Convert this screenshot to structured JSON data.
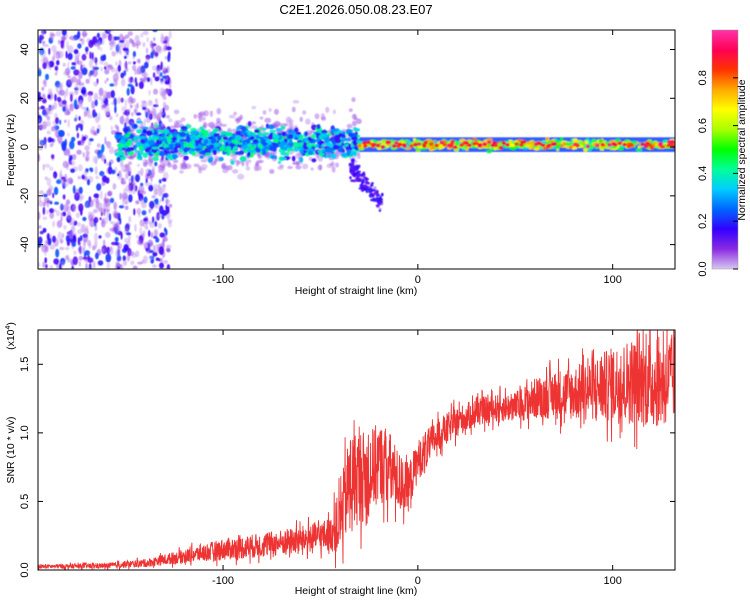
{
  "title": "C2E1.2026.050.08.23.E07",
  "chart_data": [
    {
      "type": "heatmap",
      "title": "C2E1.2026.050.08.23.E07",
      "xlabel": "Height of straight line (km)",
      "ylabel": "Frequency (Hz)",
      "xlim": [
        -195,
        132
      ],
      "ylim": [
        -50,
        48
      ],
      "xticks": [
        -100,
        0,
        100
      ],
      "xtick_labels": [
        "-100",
        "0",
        "100"
      ],
      "yticks": [
        -40,
        -20,
        0,
        20,
        40
      ],
      "ytick_labels": [
        "-40",
        "-20",
        "0",
        "20",
        "40"
      ],
      "grid": false,
      "colorbar": {
        "label": "Normalized spectral amplitude",
        "range": [
          0,
          1
        ],
        "ticks": [
          0.0,
          0.2,
          0.4,
          0.6,
          0.8
        ],
        "tick_labels": [
          "0.0",
          "0.2",
          "0.4",
          "0.6",
          "0.8"
        ],
        "colormap": [
          "#d8c8f0",
          "#8a2be2",
          "#3300ff",
          "#0066ff",
          "#00ccff",
          "#00ff99",
          "#00ff00",
          "#aaff00",
          "#ffff00",
          "#ffaa00",
          "#ff3300",
          "#ff0055",
          "#ff33aa"
        ]
      },
      "description_regions": [
        {
          "name": "diffuse-noise",
          "x_range": [
            -195,
            -135
          ],
          "freq_range": [
            -50,
            48
          ],
          "amplitude": [
            0.02,
            0.25
          ]
        },
        {
          "name": "scattered-band",
          "x_range": [
            -155,
            -30
          ],
          "center_freq": 2,
          "half_width_hz": 5,
          "amplitude": [
            0.15,
            0.45
          ]
        },
        {
          "name": "descending-branch",
          "x_range": [
            -35,
            -18
          ],
          "freq_range": [
            -25,
            -8
          ],
          "amplitude": [
            0.1,
            0.2
          ]
        },
        {
          "name": "steady-line",
          "x_range": [
            -30,
            132
          ],
          "center_freq": 1,
          "half_width_hz": 3,
          "amplitude": [
            0.4,
            0.95
          ]
        }
      ]
    },
    {
      "type": "line",
      "xlabel": "Height of straight line (km)",
      "ylabel": "SNR (10 * v/v)",
      "y_multiplier_label": "(x10",
      "y_multiplier_exp": "4",
      "y_multiplier_close": ")",
      "xlim": [
        -195,
        132
      ],
      "ylim": [
        0,
        17500
      ],
      "xticks": [
        -100,
        0,
        100
      ],
      "xtick_labels": [
        "-100",
        "0",
        "100"
      ],
      "yticks": [
        0,
        5000,
        10000,
        15000
      ],
      "ytick_labels": [
        "0.0",
        "0.5",
        "1.0",
        "1.5"
      ],
      "series": [
        {
          "name": "SNR",
          "color": "#ee3333",
          "envelope_x": [
            -195,
            -160,
            -140,
            -120,
            -100,
            -80,
            -60,
            -45,
            -40,
            -35,
            -30,
            -25,
            -20,
            -15,
            -10,
            -5,
            0,
            10,
            20,
            30,
            40,
            50,
            60,
            70,
            80,
            90,
            100,
            110,
            120,
            132
          ],
          "envelope_y": [
            250,
            300,
            500,
            1000,
            1500,
            1800,
            2200,
            2600,
            3500,
            6500,
            6800,
            7000,
            7800,
            7500,
            6500,
            6000,
            8000,
            9800,
            10800,
            11500,
            11800,
            11900,
            12500,
            12800,
            12900,
            13200,
            13500,
            13800,
            13600,
            14000
          ],
          "noise_amplitude": [
            150,
            200,
            300,
            500,
            800,
            900,
            1000,
            1200,
            2500,
            3500,
            3500,
            3200,
            3000,
            2800,
            2200,
            1800,
            1500,
            1200,
            1100,
            1000,
            1000,
            1100,
            1500,
            1800,
            2000,
            2300,
            2800,
            3200,
            3300,
            3300
          ],
          "samples": 2400
        }
      ]
    }
  ]
}
